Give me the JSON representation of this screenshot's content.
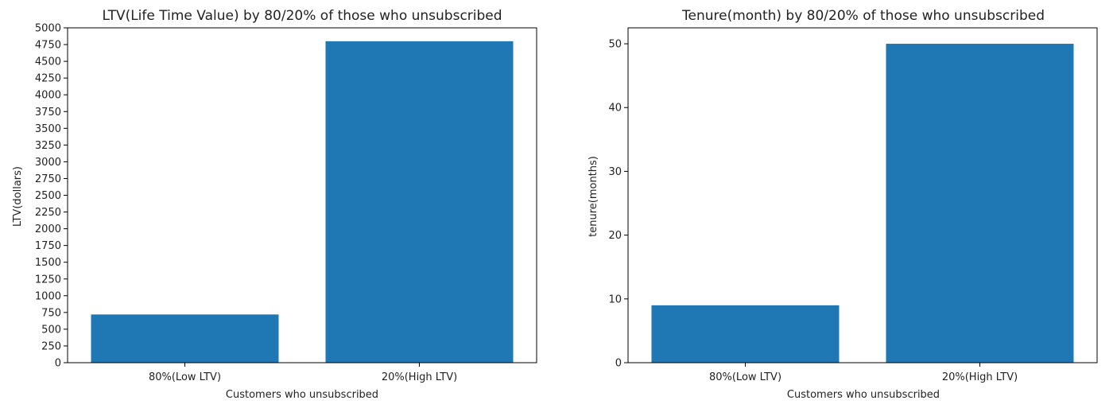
{
  "colors": {
    "bar": "#1f77b4",
    "axis": "#000000",
    "text": "#222222"
  },
  "chart_data": [
    {
      "type": "bar",
      "title": "LTV(Life Time Value) by 80/20% of those who unsubscribed",
      "xlabel": "Customers who unsubscribed",
      "ylabel": "LTV(dollars)",
      "categories": [
        "80%(Low LTV)",
        "20%(High LTV)"
      ],
      "values": [
        720,
        4800
      ],
      "ylim": [
        0,
        5000
      ],
      "yticks": [
        0,
        250,
        500,
        750,
        1000,
        1250,
        1500,
        1750,
        2000,
        2250,
        2500,
        2750,
        3000,
        3250,
        3500,
        3750,
        4000,
        4250,
        4500,
        4750,
        5000
      ],
      "grid": false,
      "legend": "none"
    },
    {
      "type": "bar",
      "title": "Tenure(month) by 80/20% of those who unsubscribed",
      "xlabel": "Customers who unsubscribed",
      "ylabel": "tenure(months)",
      "categories": [
        "80%(Low LTV)",
        "20%(High LTV)"
      ],
      "values": [
        9,
        50
      ],
      "ylim": [
        0,
        52.5
      ],
      "yticks": [
        0,
        10,
        20,
        30,
        40,
        50
      ],
      "grid": false,
      "legend": "none"
    }
  ]
}
